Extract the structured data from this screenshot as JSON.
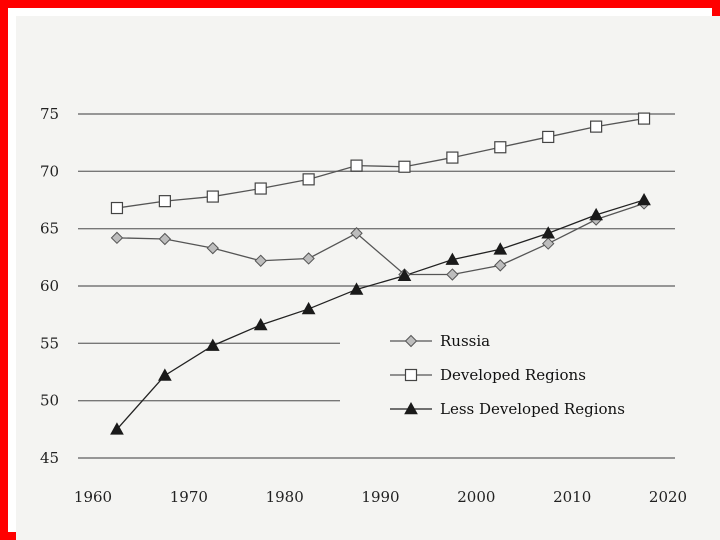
{
  "chart_data": {
    "type": "line",
    "title": "",
    "xlabel": "",
    "ylabel": "",
    "xlim": [
      1960,
      2020
    ],
    "ylim": [
      45,
      75
    ],
    "x_ticks": [
      "1960",
      "1970",
      "1980",
      "1990",
      "2000",
      "2010",
      "2020"
    ],
    "y_ticks": [
      "45",
      "50",
      "55",
      "60",
      "65",
      "70",
      "75"
    ],
    "grid": true,
    "legend_placement": "lower-right",
    "series": [
      {
        "name": "Russia",
        "marker": "diamond",
        "color": "#555555",
        "x": [
          1962.5,
          1967.5,
          1972.5,
          1977.5,
          1982.5,
          1987.5,
          1992.5,
          1997.5,
          2002.5,
          2007.5,
          2012.5,
          2017.5
        ],
        "y": [
          64.2,
          64.1,
          63.3,
          62.2,
          62.4,
          64.6,
          61.0,
          61.0,
          61.8,
          63.7,
          65.8,
          67.2
        ]
      },
      {
        "name": "Developed Regions",
        "marker": "square",
        "color": "#555555",
        "x": [
          1962.5,
          1967.5,
          1972.5,
          1977.5,
          1982.5,
          1987.5,
          1992.5,
          1997.5,
          2002.5,
          2007.5,
          2012.5,
          2017.5
        ],
        "y": [
          66.8,
          67.4,
          67.8,
          68.5,
          69.3,
          70.5,
          70.4,
          71.2,
          72.1,
          73.0,
          73.9,
          74.6
        ]
      },
      {
        "name": "Less Developed Regions",
        "marker": "triangle",
        "color": "#222222",
        "x": [
          1962.5,
          1967.5,
          1972.5,
          1977.5,
          1982.5,
          1987.5,
          1992.5,
          1997.5,
          2002.5,
          2007.5,
          2012.5,
          2017.5
        ],
        "y": [
          47.5,
          52.2,
          54.8,
          56.6,
          58.0,
          59.7,
          60.9,
          62.3,
          63.2,
          64.6,
          66.2,
          67.5
        ]
      }
    ]
  }
}
